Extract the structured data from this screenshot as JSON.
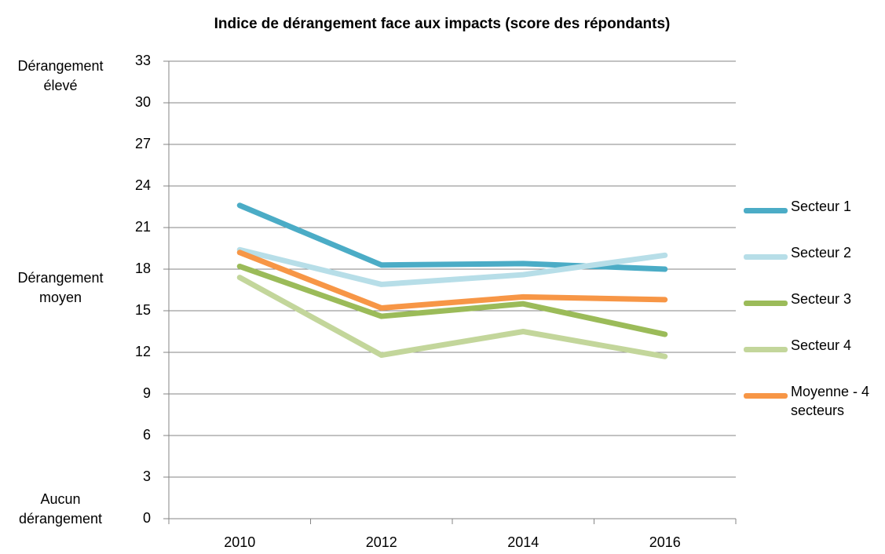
{
  "chart_data": {
    "type": "line",
    "title": "Indice de dérangement face aux impacts (score des répondants)",
    "annotations": [
      [
        "Dérangement",
        "élevé"
      ],
      [
        "Dérangement",
        "moyen"
      ],
      [
        "Aucun",
        "dérangement"
      ]
    ],
    "categories": [
      "2010",
      "2012",
      "2014",
      "2016"
    ],
    "series": [
      {
        "name": "Secteur 1",
        "color": "#4bacc6",
        "values": [
          22.6,
          18.3,
          18.4,
          18.0
        ]
      },
      {
        "name": "Secteur 2",
        "color": "#b7dee8",
        "values": [
          19.4,
          16.9,
          17.6,
          19.0
        ]
      },
      {
        "name": "Secteur 3",
        "color": "#9bbb59",
        "values": [
          18.2,
          14.6,
          15.5,
          13.3
        ]
      },
      {
        "name": "Secteur 4",
        "color": "#c3d69b",
        "values": [
          17.4,
          11.8,
          13.5,
          11.7
        ]
      },
      {
        "name": "Moyenne - 4 secteurs",
        "color": "#f79646",
        "values": [
          19.2,
          15.2,
          16.0,
          15.8
        ]
      }
    ],
    "ylim": [
      0,
      33
    ],
    "yticks": [
      0,
      3,
      6,
      9,
      12,
      15,
      18,
      21,
      24,
      27,
      30,
      33
    ],
    "grid": true,
    "legend": "right"
  }
}
